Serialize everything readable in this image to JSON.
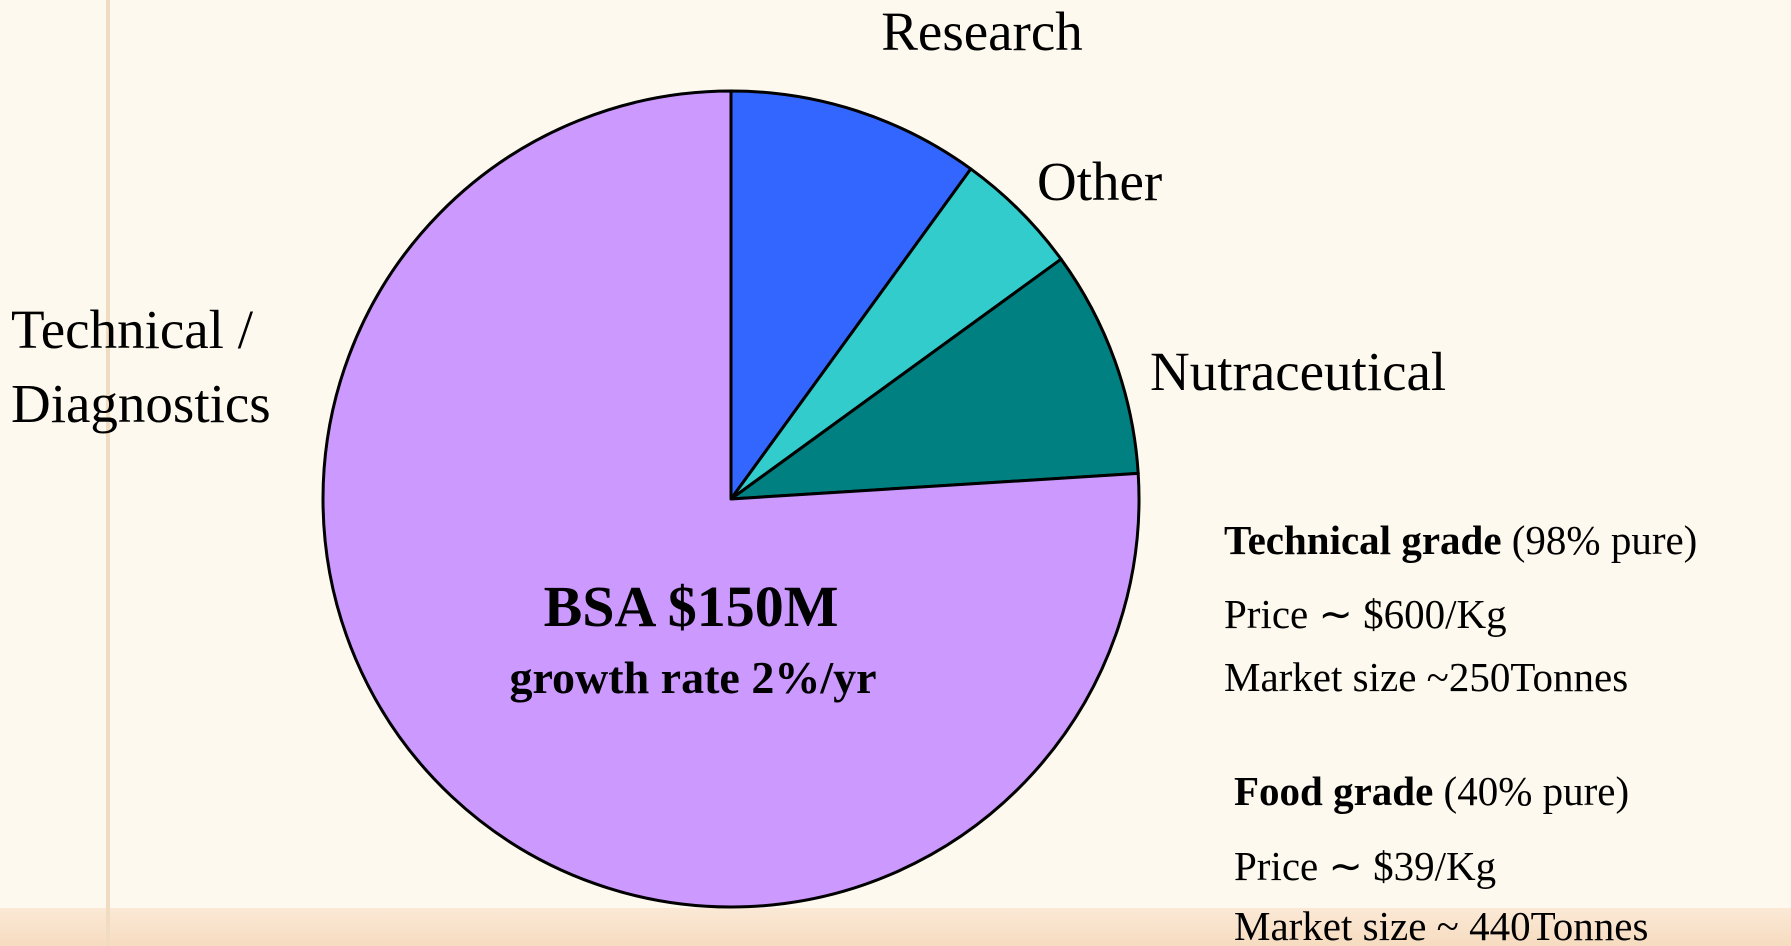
{
  "chart_data": {
    "type": "pie",
    "categories": [
      "Research",
      "Other",
      "Nutraceutical",
      "Technical / Diagnostics"
    ],
    "values": [
      10,
      5,
      9,
      76
    ],
    "colors": [
      "#3366ff",
      "#33cccc",
      "#008080",
      "#cc99ff"
    ],
    "center_title": "BSA $150M",
    "center_subtitle": "growth rate 2%/yr",
    "notes": [
      {
        "title": "Technical grade",
        "detail": "(98% pure)",
        "lines": [
          "Price ∼ $600/Kg",
          "Market size ~250Tonnes"
        ]
      },
      {
        "title": "Food grade",
        "detail": "(40% pure)",
        "lines": [
          "Price ∼ $39/Kg",
          "Market size ~ 440Tonnes"
        ]
      }
    ]
  }
}
